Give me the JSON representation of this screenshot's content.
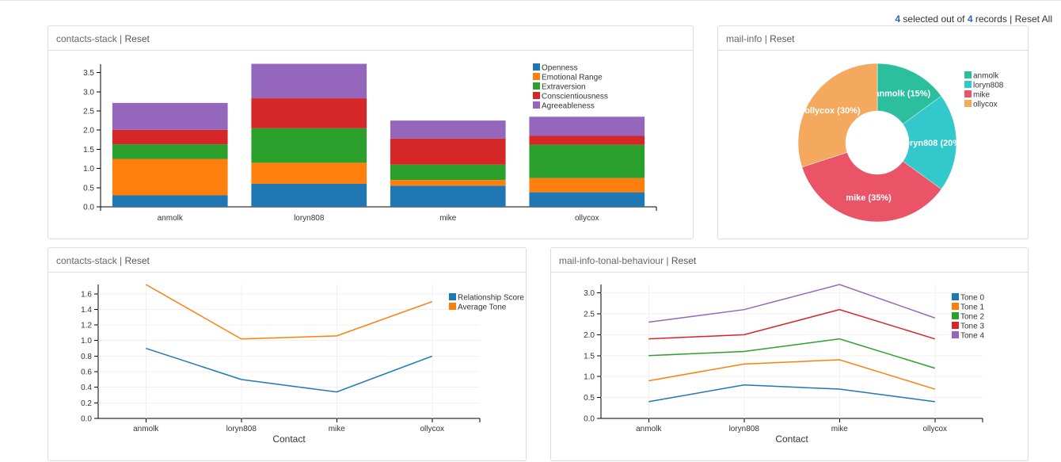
{
  "summary": {
    "selected": "4",
    "text1": " selected out of ",
    "total": "4",
    "text2": " records | ",
    "reset_all": "Reset All"
  },
  "panels": [
    {
      "title": "contacts-stack",
      "sep": " | ",
      "reset": "Reset"
    },
    {
      "title": "mail-info",
      "sep": " | ",
      "reset": "Reset"
    },
    {
      "title": "contacts-stack",
      "sep": " | ",
      "reset": "Reset"
    },
    {
      "title": "mail-info-tonal-behaviour",
      "sep": " | ",
      "reset": "Reset"
    }
  ],
  "chart_data": [
    {
      "type": "bar",
      "stacked": true,
      "categories": [
        "anmolk",
        "loryn808",
        "mike",
        "ollycox"
      ],
      "series": [
        {
          "name": "Openness",
          "color": "#1f77b4",
          "values": [
            0.3,
            0.6,
            0.55,
            0.38
          ]
        },
        {
          "name": "Emotional Range",
          "color": "#ff7f0e",
          "values": [
            0.95,
            0.55,
            0.15,
            0.37
          ]
        },
        {
          "name": "Extraversion",
          "color": "#2ca02c",
          "values": [
            0.38,
            0.9,
            0.4,
            0.87
          ]
        },
        {
          "name": "Conscientiousness",
          "color": "#d62728",
          "values": [
            0.38,
            0.78,
            0.68,
            0.23
          ]
        },
        {
          "name": "Agreeableness",
          "color": "#9467bd",
          "values": [
            0.7,
            0.9,
            0.47,
            0.5
          ]
        }
      ],
      "yticks": [
        "0.0",
        "0.5",
        "1.0",
        "1.5",
        "2.0",
        "2.5",
        "3.0",
        "3.5"
      ],
      "ylim": [
        0,
        3.72
      ],
      "legend": "top-right"
    },
    {
      "type": "pie",
      "donut": true,
      "slices": [
        {
          "name": "anmolk",
          "value": 15,
          "label": "anmolk (15%)",
          "color": "#2bbf9e"
        },
        {
          "name": "loryn808",
          "value": 20,
          "label": "loryn808 (20%)",
          "color": "#33c8cb"
        },
        {
          "name": "mike",
          "value": 35,
          "label": "mike (35%)",
          "color": "#eb5467"
        },
        {
          "name": "ollycox",
          "value": 30,
          "label": "ollycox (30%)",
          "color": "#f5a95e"
        }
      ],
      "legend": "right"
    },
    {
      "type": "line",
      "categories": [
        "anmolk",
        "loryn808",
        "mike",
        "ollycox"
      ],
      "series": [
        {
          "name": "Relationship Score",
          "color": "#1f77b4",
          "values": [
            0.9,
            0.5,
            0.34,
            0.8
          ]
        },
        {
          "name": "Average Tone",
          "color": "#ff7f0e",
          "values": [
            1.72,
            1.02,
            1.06,
            1.5
          ]
        }
      ],
      "yticks": [
        "0.0",
        "0.2",
        "0.4",
        "0.6",
        "0.8",
        "1.0",
        "1.2",
        "1.4",
        "1.6"
      ],
      "ylim": [
        0,
        1.72
      ],
      "xlabel": "Contact",
      "grid": true,
      "legend": "top-right"
    },
    {
      "type": "line",
      "categories": [
        "anmolk",
        "loryn808",
        "mike",
        "ollycox"
      ],
      "series": [
        {
          "name": "Tone 0",
          "color": "#1f77b4",
          "values": [
            0.4,
            0.8,
            0.7,
            0.4
          ]
        },
        {
          "name": "Tone 1",
          "color": "#ff7f0e",
          "values": [
            0.9,
            1.3,
            1.4,
            0.7
          ]
        },
        {
          "name": "Tone 2",
          "color": "#2ca02c",
          "values": [
            1.5,
            1.6,
            1.9,
            1.2
          ]
        },
        {
          "name": "Tone 3",
          "color": "#d62728",
          "values": [
            1.9,
            2.0,
            2.6,
            1.9
          ]
        },
        {
          "name": "Tone 4",
          "color": "#9467bd",
          "values": [
            2.3,
            2.6,
            3.2,
            2.4
          ]
        }
      ],
      "yticks": [
        "0.0",
        "0.5",
        "1.0",
        "1.5",
        "2.0",
        "2.5",
        "3.0"
      ],
      "ylim": [
        0,
        3.2
      ],
      "xlabel": "Contact",
      "grid": true,
      "legend": "top-right"
    }
  ]
}
